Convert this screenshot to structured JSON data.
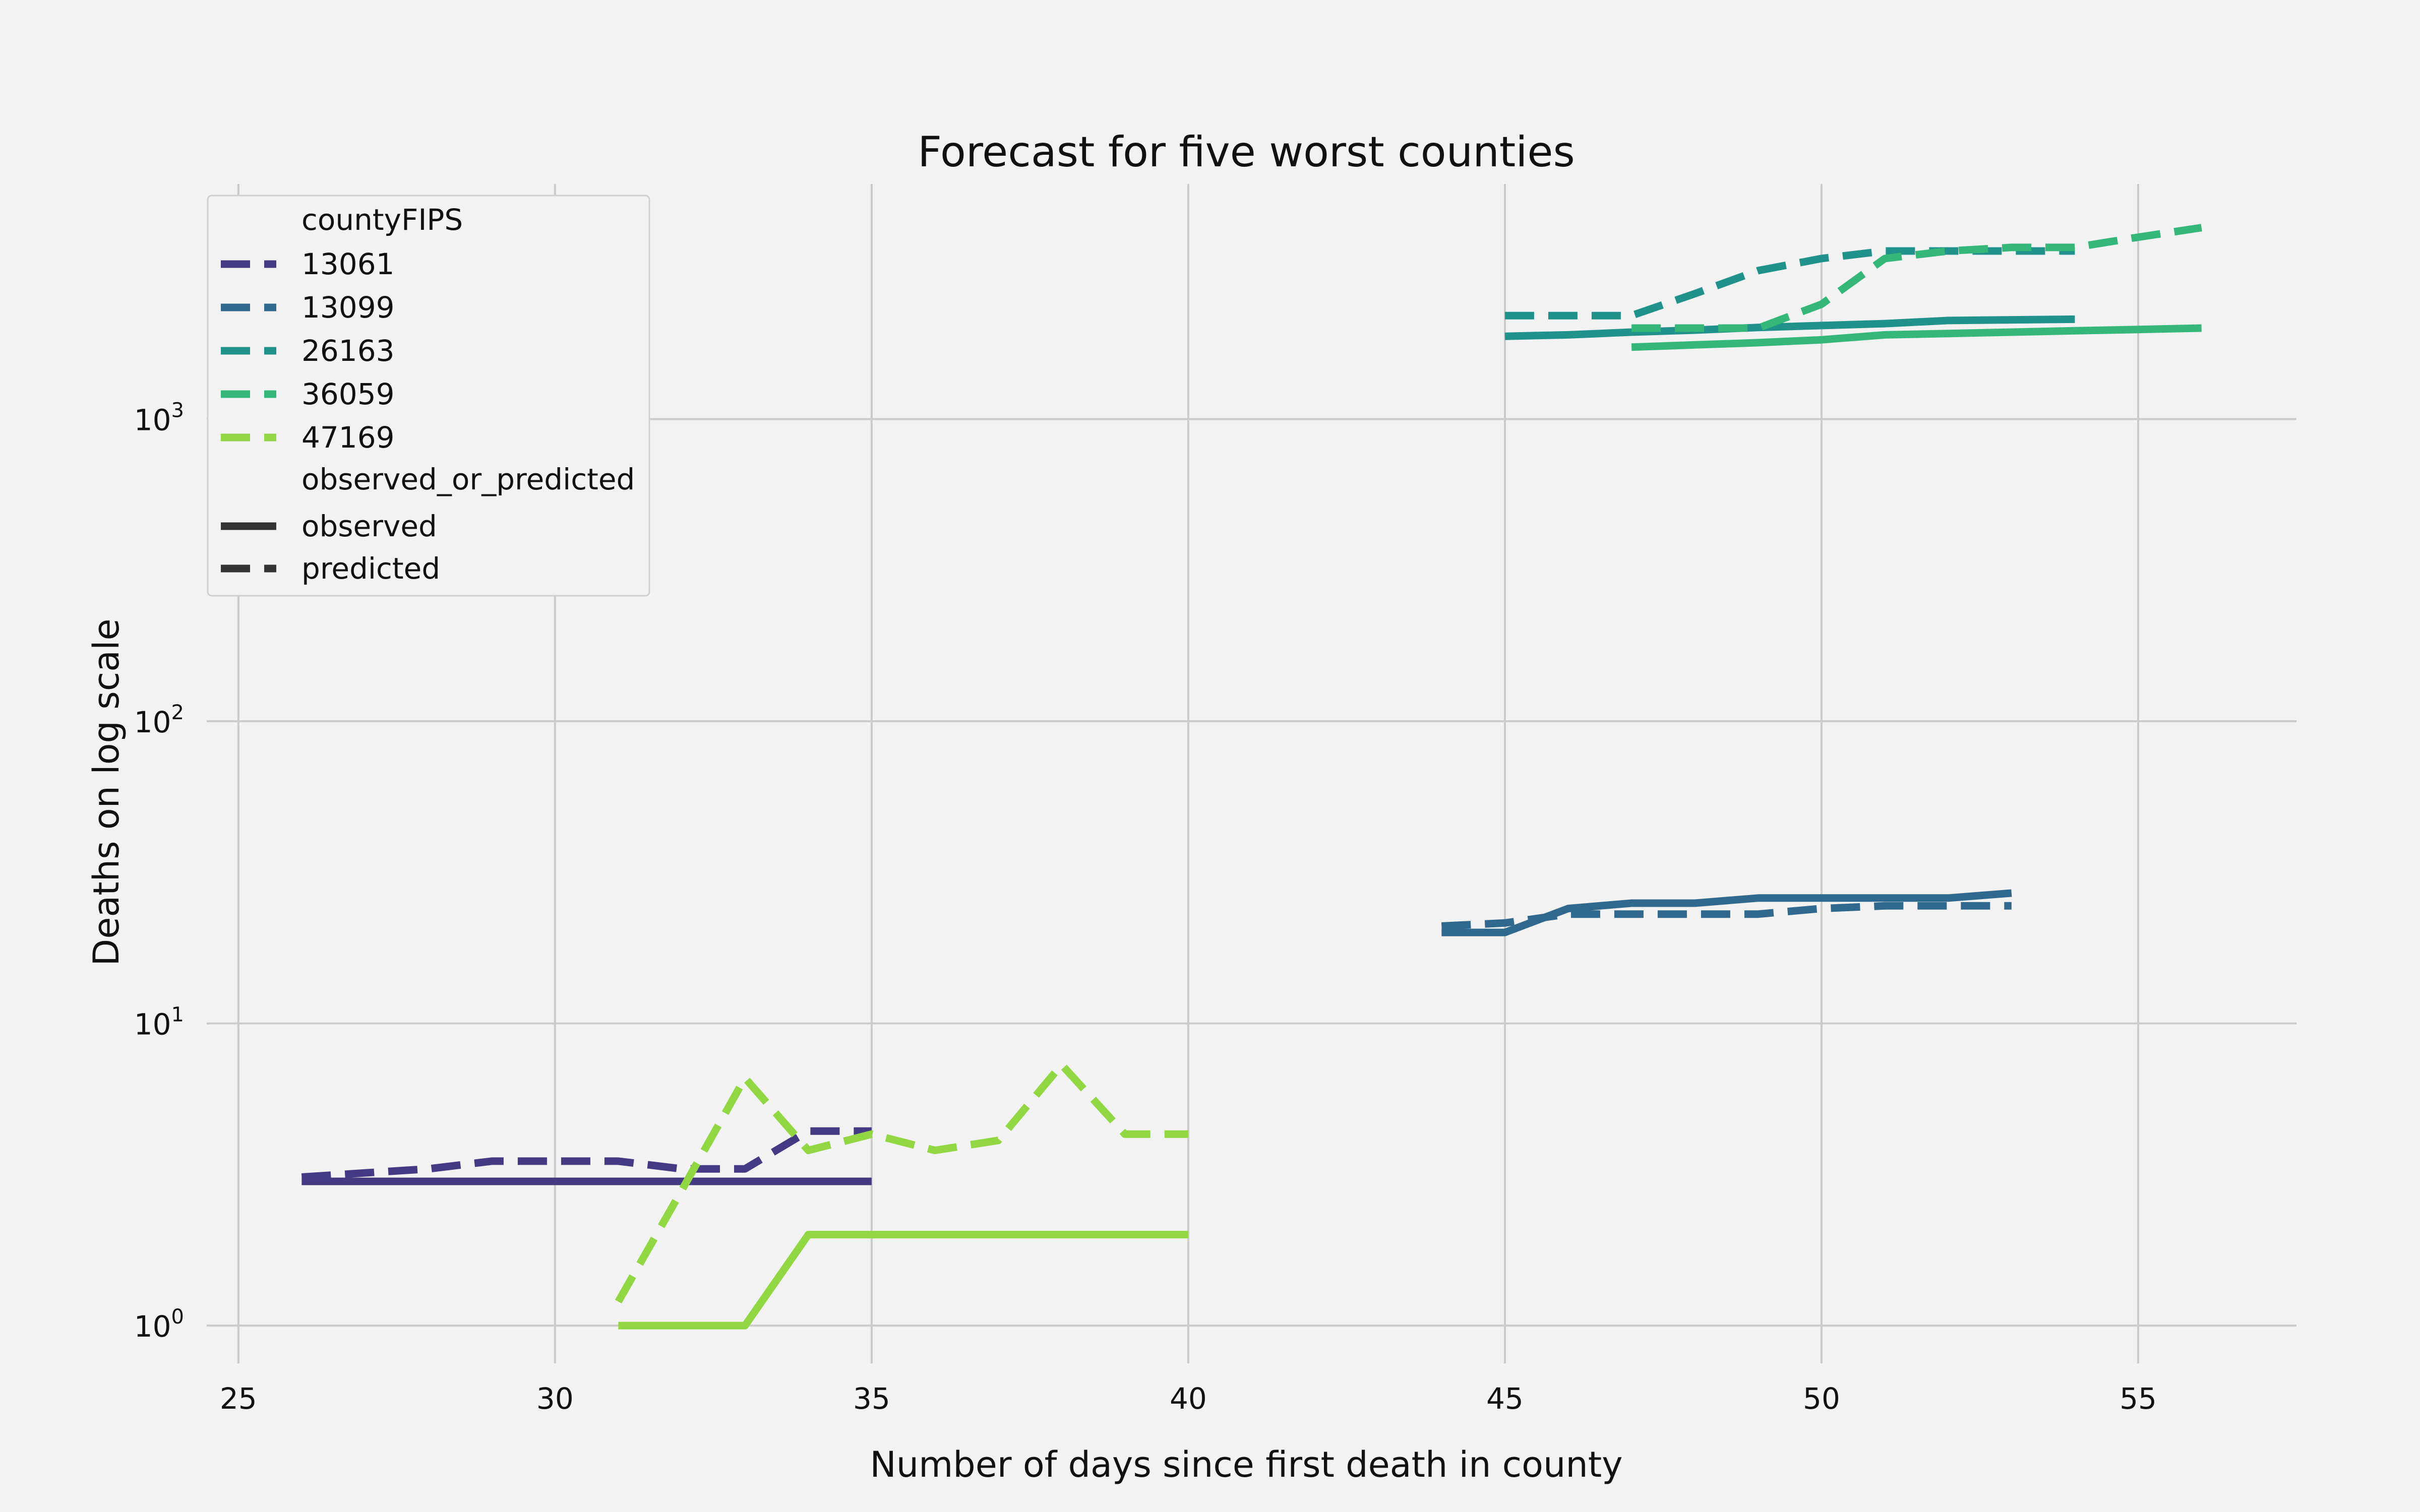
{
  "chart_data": {
    "type": "line",
    "title": "Forecast for five worst counties",
    "xlabel": "Number of days since first death in county",
    "ylabel": "Deaths on log scale",
    "xlim": [
      24.5,
      57.5
    ],
    "ylim": [
      0.75,
      6000
    ],
    "yscale": "log",
    "grid": true,
    "legend_position": "top-left",
    "x_ticks": [
      "25",
      "30",
      "35",
      "40",
      "45",
      "50",
      "55"
    ],
    "y_ticks": [
      {
        "base": "10",
        "exp": "0",
        "value": 1
      },
      {
        "base": "10",
        "exp": "1",
        "value": 10
      },
      {
        "base": "10",
        "exp": "2",
        "value": 100
      },
      {
        "base": "10",
        "exp": "3",
        "value": 1000
      }
    ],
    "legend": {
      "hue_title": "countyFIPS",
      "style_title": "observed_or_predicted",
      "style_items": [
        {
          "label": "observed",
          "style": "solid"
        },
        {
          "label": "predicted",
          "style": "dashed"
        }
      ]
    },
    "series": [
      {
        "name": "13061",
        "color": "#443983",
        "observed": {
          "x": [
            26,
            35
          ],
          "y": [
            3,
            3
          ]
        },
        "predicted": {
          "x": [
            26,
            27,
            28,
            29,
            30,
            31,
            32,
            33,
            34,
            35
          ],
          "y": [
            3.1,
            3.2,
            3.3,
            3.5,
            3.5,
            3.5,
            3.3,
            3.3,
            4.4,
            4.4
          ]
        }
      },
      {
        "name": "13099",
        "color": "#31688e",
        "observed": {
          "x": [
            44,
            45,
            46,
            47,
            48,
            49,
            50,
            51,
            52,
            53
          ],
          "y": [
            20,
            20,
            24,
            25,
            25,
            26,
            26,
            26,
            26,
            27
          ]
        },
        "predicted": {
          "x": [
            44,
            45,
            46,
            47,
            48,
            49,
            50,
            51,
            52,
            53
          ],
          "y": [
            21,
            21.5,
            23,
            23,
            23,
            23,
            24,
            24.5,
            24.5,
            24.5
          ]
        }
      },
      {
        "name": "26163",
        "color": "#21918c",
        "observed": {
          "x": [
            45,
            46,
            47,
            48,
            49,
            50,
            51,
            52,
            53,
            54
          ],
          "y": [
            1880,
            1900,
            1940,
            1970,
            2010,
            2040,
            2070,
            2120,
            2130,
            2140
          ]
        },
        "predicted": {
          "x": [
            45,
            46,
            47,
            48,
            49,
            50,
            51,
            52,
            53,
            54
          ],
          "y": [
            2200,
            2200,
            2200,
            2600,
            3100,
            3400,
            3600,
            3600,
            3600,
            3600
          ]
        }
      },
      {
        "name": "36059",
        "color": "#35b779",
        "observed": {
          "x": [
            47,
            48,
            49,
            50,
            51,
            52,
            53,
            54,
            55,
            56
          ],
          "y": [
            1730,
            1760,
            1790,
            1830,
            1900,
            1920,
            1940,
            1960,
            1980,
            2000
          ]
        },
        "predicted": {
          "x": [
            47,
            48,
            49,
            50,
            51,
            52,
            53,
            54,
            55,
            56
          ],
          "y": [
            2000,
            2000,
            2000,
            2400,
            3400,
            3600,
            3700,
            3700,
            4000,
            4300
          ]
        }
      },
      {
        "name": "47169",
        "color": "#90d743",
        "observed": {
          "x": [
            31,
            32,
            33,
            34,
            35,
            36,
            37,
            38,
            39,
            40
          ],
          "y": [
            1,
            1,
            1,
            2,
            2,
            2,
            2,
            2,
            2,
            2
          ]
        },
        "predicted": {
          "x": [
            31,
            32,
            33,
            34,
            35,
            36,
            37,
            38,
            39,
            40
          ],
          "y": [
            1.2,
            2.8,
            6.6,
            3.8,
            4.3,
            3.8,
            4.1,
            7.3,
            4.3,
            4.3
          ]
        }
      }
    ]
  }
}
